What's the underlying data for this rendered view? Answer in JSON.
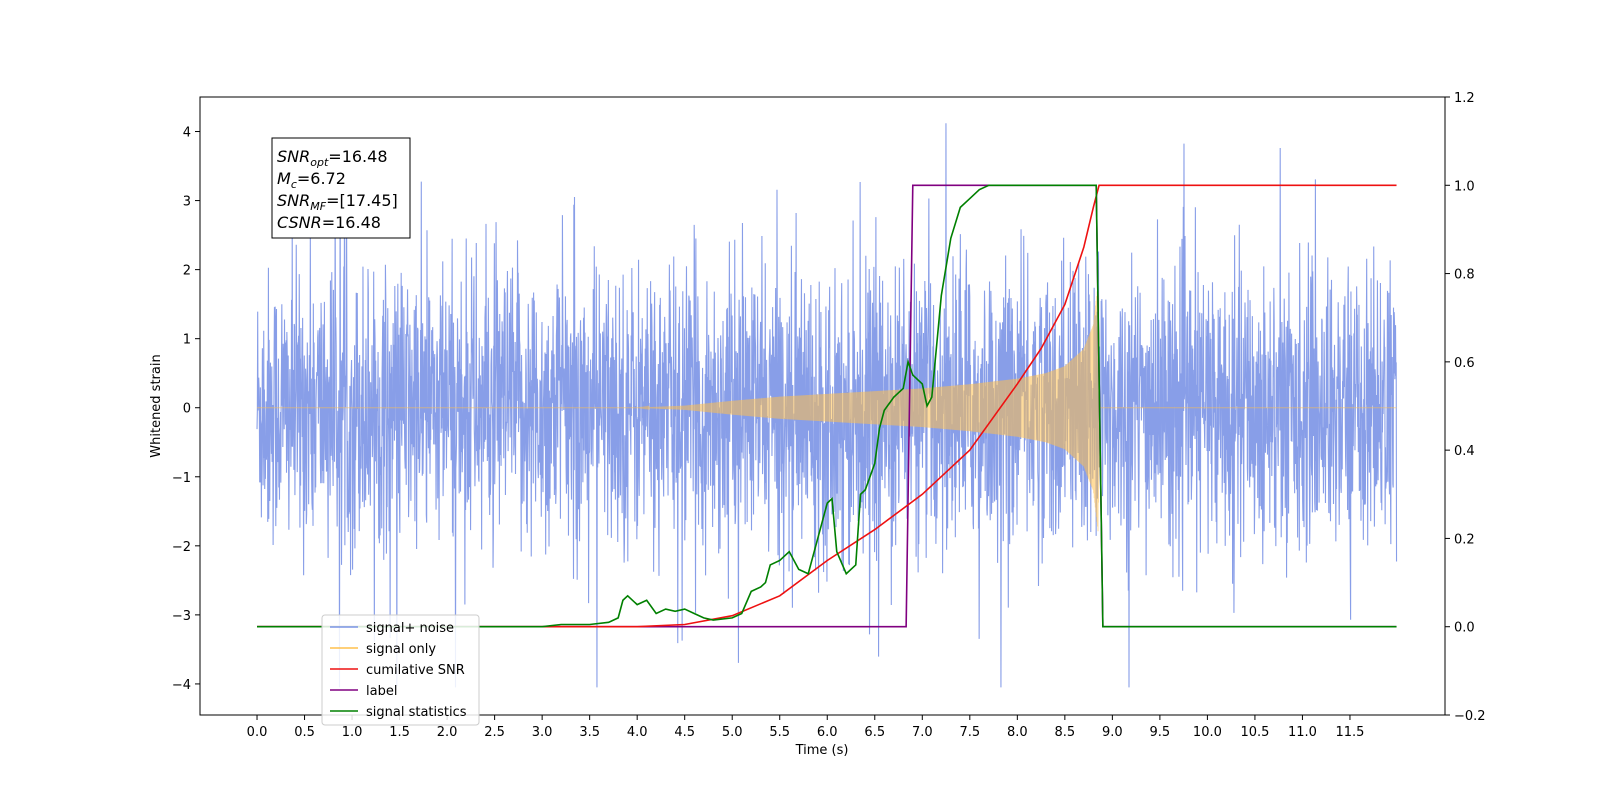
{
  "chart_data": {
    "type": "line",
    "xlabel": "Time (s)",
    "ylabel": "Whitened strain",
    "ylabel_right": "",
    "xlim": [
      -0.6,
      12.5
    ],
    "ylim": [
      -4.45,
      4.5
    ],
    "ylim_right": [
      -0.2,
      1.2
    ],
    "x_ticks": [
      0.0,
      0.5,
      1.0,
      1.5,
      2.0,
      2.5,
      3.0,
      3.5,
      4.0,
      4.5,
      5.0,
      5.5,
      6.0,
      6.5,
      7.0,
      7.5,
      8.0,
      8.5,
      9.0,
      9.5,
      10.0,
      10.5,
      11.0,
      11.5
    ],
    "x_tick_labels": [
      "0.0",
      "0.5",
      "1.0",
      "1.5",
      "2.0",
      "2.5",
      "3.0",
      "3.5",
      "4.0",
      "4.5",
      "5.0",
      "5.5",
      "6.0",
      "6.5",
      "7.0",
      "7.5",
      "8.0",
      "8.5",
      "9.0",
      "9.5",
      "10.0",
      "10.5",
      "11.0",
      "11.5"
    ],
    "y_ticks": [
      -4,
      -3,
      -2,
      -1,
      0,
      1,
      2,
      3,
      4
    ],
    "y_tick_labels": [
      "−4",
      "−3",
      "−2",
      "−1",
      "0",
      "1",
      "2",
      "3",
      "4"
    ],
    "y_ticks_right": [
      -0.2,
      0.0,
      0.2,
      0.4,
      0.6,
      0.8,
      1.0,
      1.2
    ],
    "y_tick_labels_right": [
      "−0.2",
      "0.0",
      "0.2",
      "0.4",
      "0.6",
      "0.8",
      "1.0",
      "1.2"
    ],
    "grid": false,
    "legend_position": "lower-left",
    "info_box": {
      "lines": [
        {
          "main": "SNR",
          "sub": "opt",
          "rest": "=16.48"
        },
        {
          "main": "M",
          "sub": "c",
          "rest": "=6.72"
        },
        {
          "main": "SNR",
          "sub": "MF",
          "rest": "=[17.45]"
        },
        {
          "main": "CSNR",
          "sub": "",
          "rest": "=16.48"
        }
      ]
    },
    "series": [
      {
        "name": "signal+ noise",
        "axis": "left",
        "color": "#7b93e6",
        "description_values": {
          "x_range": [
            0.0,
            11.99
          ],
          "amplitude_envelope": 2.2,
          "spikes_max": 4.12,
          "spikes_min": -4.03
        }
      },
      {
        "name": "signal only",
        "axis": "left",
        "color": "#ffc04d",
        "envelope": {
          "x": [
            0.0,
            4.0,
            4.5,
            5.0,
            5.5,
            6.0,
            6.5,
            7.0,
            7.5,
            8.0,
            8.3,
            8.5,
            8.7,
            8.8,
            8.85,
            8.87,
            12.0
          ],
          "amp": [
            0.0,
            0.0,
            0.03,
            0.1,
            0.16,
            0.2,
            0.24,
            0.28,
            0.34,
            0.42,
            0.5,
            0.6,
            0.85,
            1.2,
            1.8,
            0.0,
            0.0
          ]
        }
      },
      {
        "name": "cumilative SNR",
        "axis": "right",
        "color": "#ee1111",
        "x": [
          0.0,
          4.0,
          4.5,
          5.0,
          5.5,
          6.0,
          6.5,
          7.0,
          7.5,
          8.0,
          8.25,
          8.5,
          8.7,
          8.8,
          8.86,
          8.87,
          11.99
        ],
        "values": [
          0.0,
          0.0,
          0.005,
          0.025,
          0.07,
          0.15,
          0.22,
          0.3,
          0.4,
          0.55,
          0.63,
          0.73,
          0.86,
          0.95,
          1.0,
          1.0,
          1.0
        ]
      },
      {
        "name": "label",
        "axis": "right",
        "color": "#800080",
        "x": [
          0.0,
          6.83,
          6.9,
          8.83,
          8.9,
          11.99
        ],
        "values": [
          0.0,
          0.0,
          1.0,
          1.0,
          0.0,
          0.0
        ]
      },
      {
        "name": "signal statistics",
        "axis": "right",
        "color": "#008000",
        "x": [
          0.0,
          3.0,
          3.2,
          3.5,
          3.7,
          3.8,
          3.85,
          3.9,
          4.0,
          4.1,
          4.2,
          4.3,
          4.4,
          4.5,
          4.6,
          4.7,
          4.8,
          5.0,
          5.1,
          5.2,
          5.3,
          5.35,
          5.4,
          5.5,
          5.6,
          5.7,
          5.8,
          5.9,
          6.0,
          6.05,
          6.1,
          6.2,
          6.3,
          6.35,
          6.4,
          6.5,
          6.55,
          6.6,
          6.7,
          6.8,
          6.85,
          6.9,
          7.0,
          7.05,
          7.1,
          7.2,
          7.3,
          7.4,
          7.5,
          7.6,
          7.7,
          8.0,
          8.5,
          8.83,
          8.9,
          11.99
        ],
        "values": [
          0.0,
          0.0,
          0.005,
          0.005,
          0.01,
          0.02,
          0.06,
          0.07,
          0.05,
          0.06,
          0.03,
          0.04,
          0.035,
          0.04,
          0.03,
          0.02,
          0.015,
          0.02,
          0.03,
          0.08,
          0.09,
          0.1,
          0.14,
          0.15,
          0.17,
          0.13,
          0.12,
          0.2,
          0.28,
          0.29,
          0.17,
          0.12,
          0.14,
          0.3,
          0.31,
          0.37,
          0.45,
          0.49,
          0.52,
          0.54,
          0.6,
          0.57,
          0.55,
          0.5,
          0.52,
          0.75,
          0.88,
          0.95,
          0.97,
          0.99,
          1.0,
          1.0,
          1.0,
          1.0,
          0.0,
          0.0
        ]
      }
    ]
  },
  "legend": {
    "items": [
      {
        "label": "signal+ noise",
        "color": "#7b93e6"
      },
      {
        "label": "signal only",
        "color": "#ffc04d"
      },
      {
        "label": "cumilative SNR",
        "color": "#ee1111"
      },
      {
        "label": "label",
        "color": "#800080"
      },
      {
        "label": "signal statistics",
        "color": "#008000"
      }
    ]
  }
}
